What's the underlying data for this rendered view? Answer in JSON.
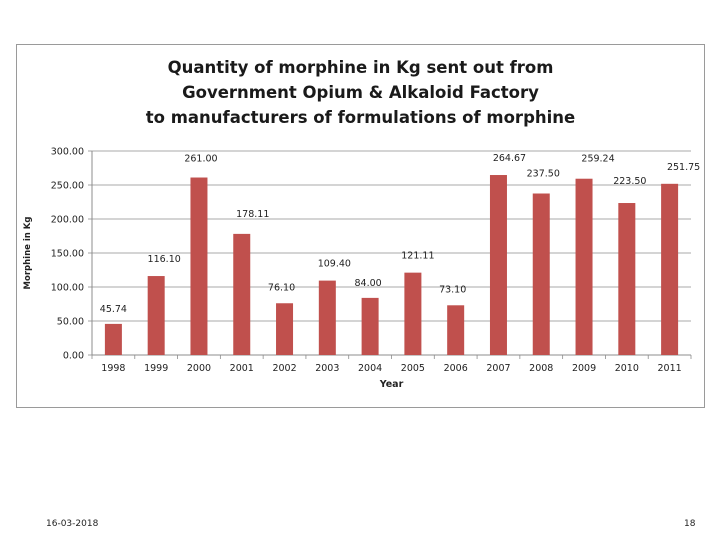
{
  "slide": {
    "date": "16-03-2018",
    "page_number": "18"
  },
  "chart_data": {
    "type": "bar",
    "title_lines": [
      "Quantity  of  morphine  in  Kg  sent  out  from",
      "Government  Opium  &  Alkaloid  Factory",
      "to  manufacturers  of   formulations  of  morphine"
    ],
    "xlabel": "Year",
    "ylabel": "Morphine in Kg",
    "ylim": [
      0,
      300
    ],
    "yticks": [
      "0.00",
      "50.00",
      "100.00",
      "150.00",
      "200.00",
      "250.00",
      "300.00"
    ],
    "grid": true,
    "legend": "none",
    "categories": [
      "1998",
      "1999",
      "2000",
      "2001",
      "2002",
      "2003",
      "2004",
      "2005",
      "2006",
      "2007",
      "2008",
      "2009",
      "2010",
      "2011"
    ],
    "series": [
      {
        "values": [
          45.74,
          116.1,
          261.0,
          178.11,
          76.1,
          109.4,
          84.0,
          121.11,
          73.1,
          264.67,
          237.5,
          259.24,
          223.5,
          251.75
        ],
        "labels": [
          "45.74",
          "116.10",
          "261.00",
          "178.11",
          "76.10",
          "109.40",
          "84.00",
          "121.11",
          "73.10",
          "264.67",
          "237.50",
          "259.24",
          "223.50",
          "251.75"
        ],
        "color": "#c0504d"
      }
    ]
  }
}
